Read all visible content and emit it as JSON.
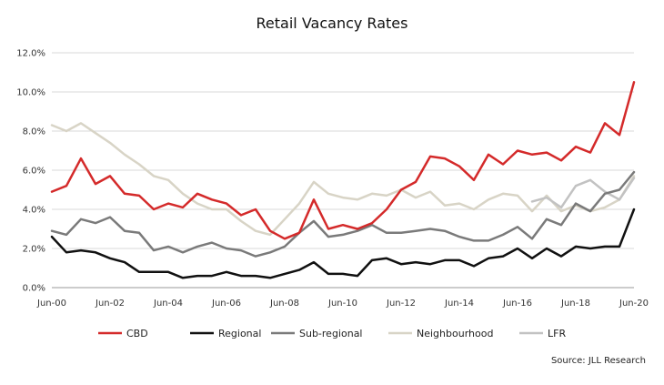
{
  "chart_data": {
    "type": "line",
    "title": "Retail Vacancy Rates",
    "xlabel": "",
    "ylabel": "",
    "x_tick_labels": [
      "Jun-00",
      "Jun-02",
      "Jun-04",
      "Jun-06",
      "Jun-08",
      "Jun-10",
      "Jun-12",
      "Jun-14",
      "Jun-16",
      "Jun-18",
      "Jun-20"
    ],
    "y_tick_labels": [
      "0.0%",
      "2.0%",
      "4.0%",
      "6.0%",
      "8.0%",
      "10.0%",
      "12.0%"
    ],
    "ylim": [
      0,
      12
    ],
    "xlim": [
      2000.0,
      2020.0
    ],
    "grid": "horizontal",
    "legend_position": "bottom",
    "source": "Source: JLL Research",
    "series": [
      {
        "name": "CBD",
        "color": "#d42a2a",
        "x": [
          2000.0,
          2000.5,
          2001.0,
          2001.5,
          2002.0,
          2002.5,
          2003.0,
          2003.5,
          2004.0,
          2004.5,
          2005.0,
          2005.5,
          2006.0,
          2006.5,
          2007.0,
          2007.5,
          2008.0,
          2008.5,
          2009.0,
          2009.5,
          2010.0,
          2010.5,
          2011.0,
          2011.5,
          2012.0,
          2012.5,
          2013.0,
          2013.5,
          2014.0,
          2014.5,
          2015.0,
          2015.5,
          2016.0,
          2016.5,
          2017.0,
          2017.5,
          2018.0,
          2018.5,
          2019.0,
          2019.5,
          2020.0
        ],
        "values": [
          4.9,
          5.2,
          6.6,
          5.3,
          5.7,
          4.8,
          4.7,
          4.0,
          4.3,
          4.1,
          4.8,
          4.5,
          4.3,
          3.7,
          4.0,
          2.9,
          2.5,
          2.8,
          4.5,
          3.0,
          3.2,
          3.0,
          3.3,
          4.0,
          5.0,
          5.4,
          6.7,
          6.6,
          6.2,
          5.5,
          6.8,
          6.3,
          7.0,
          6.8,
          6.9,
          6.5,
          7.2,
          6.9,
          8.4,
          7.8,
          10.5
        ]
      },
      {
        "name": "Regional",
        "color": "#111111",
        "x": [
          2000.0,
          2000.5,
          2001.0,
          2001.5,
          2002.0,
          2002.5,
          2003.0,
          2003.5,
          2004.0,
          2004.5,
          2005.0,
          2005.5,
          2006.0,
          2006.5,
          2007.0,
          2007.5,
          2008.0,
          2008.5,
          2009.0,
          2009.5,
          2010.0,
          2010.5,
          2011.0,
          2011.5,
          2012.0,
          2012.5,
          2013.0,
          2013.5,
          2014.0,
          2014.5,
          2015.0,
          2015.5,
          2016.0,
          2016.5,
          2017.0,
          2017.5,
          2018.0,
          2018.5,
          2019.0,
          2019.5,
          2020.0
        ],
        "values": [
          2.6,
          1.8,
          1.9,
          1.8,
          1.5,
          1.3,
          0.8,
          0.8,
          0.8,
          0.5,
          0.6,
          0.6,
          0.8,
          0.6,
          0.6,
          0.5,
          0.7,
          0.9,
          1.3,
          0.7,
          0.7,
          0.6,
          1.4,
          1.5,
          1.2,
          1.3,
          1.2,
          1.4,
          1.4,
          1.1,
          1.5,
          1.6,
          2.0,
          1.5,
          2.0,
          1.6,
          2.1,
          2.0,
          2.1,
          2.1,
          4.0
        ]
      },
      {
        "name": "Sub-regional",
        "color": "#7a7a7a",
        "x": [
          2000.0,
          2000.5,
          2001.0,
          2001.5,
          2002.0,
          2002.5,
          2003.0,
          2003.5,
          2004.0,
          2004.5,
          2005.0,
          2005.5,
          2006.0,
          2006.5,
          2007.0,
          2007.5,
          2008.0,
          2008.5,
          2009.0,
          2009.5,
          2010.0,
          2010.5,
          2011.0,
          2011.5,
          2012.0,
          2012.5,
          2013.0,
          2013.5,
          2014.0,
          2014.5,
          2015.0,
          2015.5,
          2016.0,
          2016.5,
          2017.0,
          2017.5,
          2018.0,
          2018.5,
          2019.0,
          2019.5,
          2020.0
        ],
        "values": [
          2.9,
          2.7,
          3.5,
          3.3,
          3.6,
          2.9,
          2.8,
          1.9,
          2.1,
          1.8,
          2.1,
          2.3,
          2.0,
          1.9,
          1.6,
          1.8,
          2.1,
          2.8,
          3.4,
          2.6,
          2.7,
          2.9,
          3.2,
          2.8,
          2.8,
          2.9,
          3.0,
          2.9,
          2.6,
          2.4,
          2.4,
          2.7,
          3.1,
          2.5,
          3.5,
          3.2,
          4.3,
          3.9,
          4.8,
          5.0,
          5.9
        ]
      },
      {
        "name": "Neighbourhood",
        "color": "#d8d4c6",
        "x": [
          2000.0,
          2000.5,
          2001.0,
          2001.5,
          2002.0,
          2002.5,
          2003.0,
          2003.5,
          2004.0,
          2004.5,
          2005.0,
          2005.5,
          2006.0,
          2006.5,
          2007.0,
          2007.5,
          2008.0,
          2008.5,
          2009.0,
          2009.5,
          2010.0,
          2010.5,
          2011.0,
          2011.5,
          2012.0,
          2012.5,
          2013.0,
          2013.5,
          2014.0,
          2014.5,
          2015.0,
          2015.5,
          2016.0,
          2016.5,
          2017.0,
          2017.5,
          2018.0,
          2018.5,
          2019.0,
          2019.5,
          2020.0
        ],
        "values": [
          8.3,
          8.0,
          8.4,
          7.9,
          7.4,
          6.8,
          6.3,
          5.7,
          5.5,
          4.8,
          4.3,
          4.0,
          4.0,
          3.4,
          2.9,
          2.7,
          3.5,
          4.3,
          5.4,
          4.8,
          4.6,
          4.5,
          4.8,
          4.7,
          5.0,
          4.6,
          4.9,
          4.2,
          4.3,
          4.0,
          4.5,
          4.8,
          4.7,
          3.9,
          4.7,
          3.9,
          4.2,
          3.9,
          4.1,
          4.5,
          5.7
        ]
      },
      {
        "name": "LFR",
        "color": "#c2c2c2",
        "x": [
          2016.5,
          2017.0,
          2017.5,
          2018.0,
          2018.5,
          2019.0,
          2019.5,
          2020.0
        ],
        "values": [
          4.4,
          4.6,
          4.1,
          5.2,
          5.5,
          4.9,
          4.5,
          5.6
        ]
      }
    ]
  }
}
